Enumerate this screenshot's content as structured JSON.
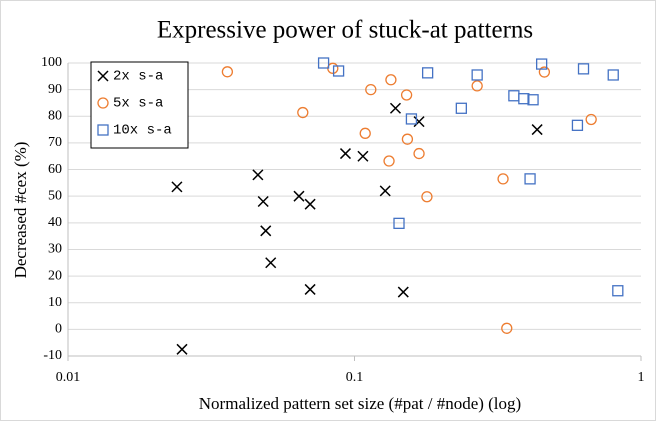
{
  "chart_data": {
    "type": "scatter",
    "title": "Expressive power of stuck-at patterns",
    "xlabel": "Normalized pattern set size (#pat / #node) (log)",
    "ylabel": "Decreased #cex (%)",
    "xscale": "log",
    "xlim": [
      0.01,
      1
    ],
    "xticks": [
      0.01,
      0.1,
      1
    ],
    "ylim": [
      -10,
      100
    ],
    "yticks": [
      -10,
      0,
      10,
      20,
      30,
      40,
      50,
      60,
      70,
      80,
      90,
      100
    ],
    "grid": true,
    "legend": "upper left",
    "series": [
      {
        "name": "2x s-a",
        "color": "#000000",
        "marker": "x",
        "x": [
          0.024,
          0.025,
          0.046,
          0.048,
          0.064,
          0.049,
          0.051,
          0.07,
          0.093,
          0.107,
          0.07,
          0.128,
          0.139,
          0.148,
          0.168,
          0.434
        ],
        "values": [
          53.5,
          -7.5,
          58,
          48,
          50,
          37,
          25,
          47,
          66,
          65,
          15,
          52,
          83,
          14,
          78,
          75
        ]
      },
      {
        "name": "5x s-a",
        "color": "#ed7d31",
        "marker": "circle",
        "x": [
          0.036,
          0.066,
          0.084,
          0.114,
          0.109,
          0.134,
          0.132,
          0.152,
          0.153,
          0.168,
          0.179,
          0.268,
          0.33,
          0.34,
          0.46,
          0.67
        ],
        "values": [
          96.7,
          81.4,
          98,
          90,
          73.6,
          93.7,
          63.2,
          88,
          71.4,
          66,
          49.8,
          91.4,
          56.5,
          0.4,
          96.6,
          78.8
        ]
      },
      {
        "name": "10x s-a",
        "color": "#4472c4",
        "marker": "square",
        "x": [
          0.078,
          0.088,
          0.18,
          0.268,
          0.45,
          0.63,
          0.8,
          0.158,
          0.236,
          0.36,
          0.39,
          0.42,
          0.6,
          0.41,
          0.143,
          0.83
        ],
        "values": [
          100,
          97,
          96.3,
          95.5,
          99.6,
          97.8,
          95.5,
          79,
          83,
          87.7,
          86.6,
          86.2,
          76.6,
          56.5,
          39.8,
          14.5
        ]
      }
    ]
  }
}
